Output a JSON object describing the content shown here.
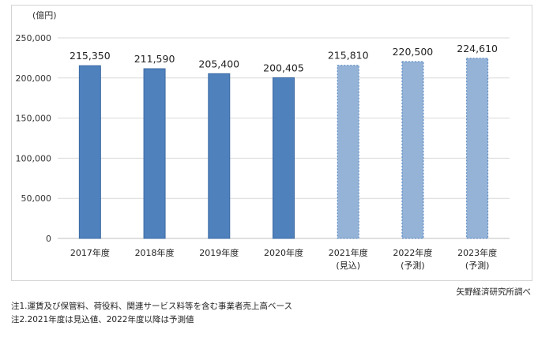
{
  "chart_data": {
    "type": "bar",
    "unit_label": "(億円)",
    "categories": [
      {
        "year": "2017年度",
        "sub": ""
      },
      {
        "year": "2018年度",
        "sub": ""
      },
      {
        "year": "2019年度",
        "sub": ""
      },
      {
        "year": "2020年度",
        "sub": ""
      },
      {
        "year": "2021年度",
        "sub": "(見込)"
      },
      {
        "year": "2022年度",
        "sub": "(予測)"
      },
      {
        "year": "2023年度",
        "sub": "(予測)"
      }
    ],
    "values": [
      215350,
      211590,
      205400,
      200405,
      215810,
      220500,
      224610
    ],
    "value_labels": [
      "215,350",
      "211,590",
      "205,400",
      "200,405",
      "215,810",
      "220,500",
      "224,610"
    ],
    "kind": [
      "actual",
      "actual",
      "actual",
      "actual",
      "estimate",
      "forecast",
      "forecast"
    ],
    "ylim": [
      0,
      250000
    ],
    "yticks": [
      0,
      50000,
      100000,
      150000,
      200000,
      250000
    ],
    "ytick_labels": [
      "0",
      "50,000",
      "100,000",
      "150,000",
      "200,000",
      "250,000"
    ],
    "grid": true,
    "colors": {
      "actual_fill": "#4f81bd",
      "actual_border": "#3c6aa3",
      "projected_fill": "#95b3d7",
      "projected_border": "#4f81bd",
      "grid": "#d9d9d9"
    }
  },
  "credit": "矢野経済研究所調べ",
  "notes": [
    "注1.運賃及び保管料、荷役料、関連サービス料等を含む事業者売上高ベース",
    "注2.2021年度は見込値、2022年度以降は予測値"
  ]
}
